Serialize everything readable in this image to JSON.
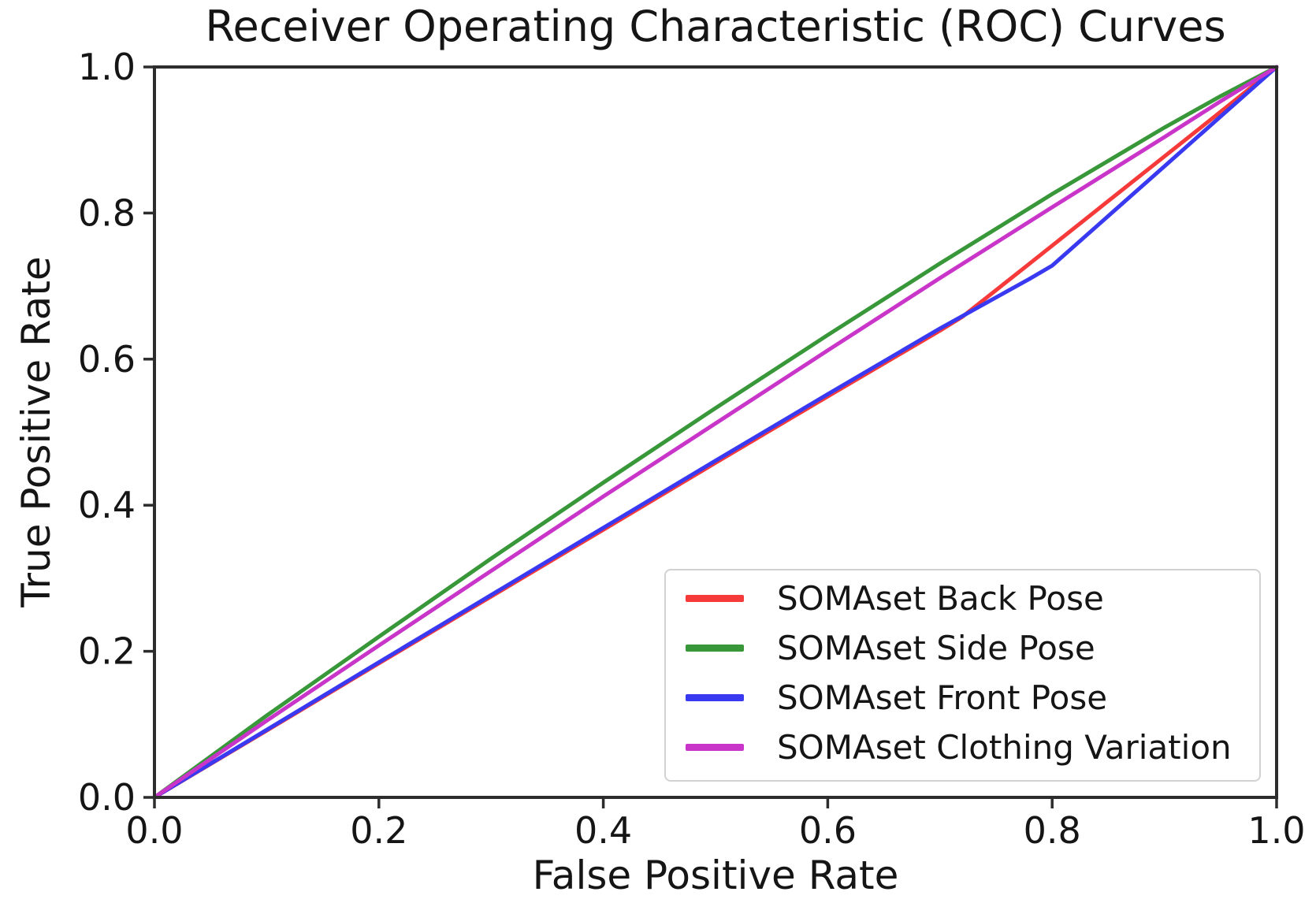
{
  "chart_data": {
    "type": "line",
    "title": "Receiver Operating Characteristic (ROC) Curves",
    "xlabel": "False Positive Rate",
    "ylabel": "True Positive Rate",
    "xlim": [
      0.0,
      1.0
    ],
    "ylim": [
      0.0,
      1.0
    ],
    "x_ticks": [
      0.0,
      0.2,
      0.4,
      0.6,
      0.8,
      1.0
    ],
    "y_ticks": [
      0.0,
      0.2,
      0.4,
      0.6,
      0.8,
      1.0
    ],
    "x_tick_labels": [
      "0.0",
      "0.2",
      "0.4",
      "0.6",
      "0.8",
      "1.0"
    ],
    "y_tick_labels": [
      "0.0",
      "0.2",
      "0.4",
      "0.6",
      "0.8",
      "1.0"
    ],
    "grid": false,
    "legend_position": "lower right",
    "axis_color": "#2d2d2d",
    "text_color": "#151515",
    "series": [
      {
        "name": "SOMAset Back Pose",
        "color": "#f63a3a",
        "points": [
          [
            0,
            0
          ],
          [
            0.1,
            0.0915
          ],
          [
            0.2,
            0.1835
          ],
          [
            0.3,
            0.275
          ],
          [
            0.4,
            0.3665
          ],
          [
            0.5,
            0.458
          ],
          [
            0.6,
            0.549
          ],
          [
            0.7,
            0.639
          ],
          [
            0.72,
            0.658
          ],
          [
            0.78,
            0.731
          ],
          [
            0.85,
            0.8165
          ],
          [
            0.9,
            0.8775
          ],
          [
            0.95,
            0.9385
          ],
          [
            1,
            1
          ]
        ]
      },
      {
        "name": "SOMAset Side Pose",
        "color": "#389738",
        "points": [
          [
            0,
            0
          ],
          [
            0.1,
            0.112
          ],
          [
            0.2,
            0.22
          ],
          [
            0.3,
            0.327
          ],
          [
            0.4,
            0.431
          ],
          [
            0.5,
            0.533
          ],
          [
            0.6,
            0.633
          ],
          [
            0.7,
            0.731
          ],
          [
            0.8,
            0.826
          ],
          [
            0.9,
            0.917
          ],
          [
            0.95,
            0.96
          ],
          [
            1,
            1
          ]
        ]
      },
      {
        "name": "SOMAset Front Pose",
        "color": "#3939f2",
        "points": [
          [
            0,
            0
          ],
          [
            0.1,
            0.0925
          ],
          [
            0.2,
            0.185
          ],
          [
            0.3,
            0.277
          ],
          [
            0.4,
            0.369
          ],
          [
            0.5,
            0.461
          ],
          [
            0.6,
            0.552
          ],
          [
            0.7,
            0.642
          ],
          [
            0.78,
            0.71
          ],
          [
            0.8,
            0.728
          ],
          [
            0.85,
            0.796
          ],
          [
            0.9,
            0.864
          ],
          [
            0.95,
            0.932
          ],
          [
            1,
            1
          ]
        ]
      },
      {
        "name": "SOMAset Clothing Variation",
        "color": "#c935c9",
        "points": [
          [
            0,
            0
          ],
          [
            0.1,
            0.105
          ],
          [
            0.2,
            0.208
          ],
          [
            0.3,
            0.31
          ],
          [
            0.4,
            0.412
          ],
          [
            0.5,
            0.512
          ],
          [
            0.6,
            0.612
          ],
          [
            0.7,
            0.711
          ],
          [
            0.8,
            0.808
          ],
          [
            0.9,
            0.904
          ],
          [
            0.95,
            0.953
          ],
          [
            1,
            1
          ]
        ]
      }
    ]
  }
}
